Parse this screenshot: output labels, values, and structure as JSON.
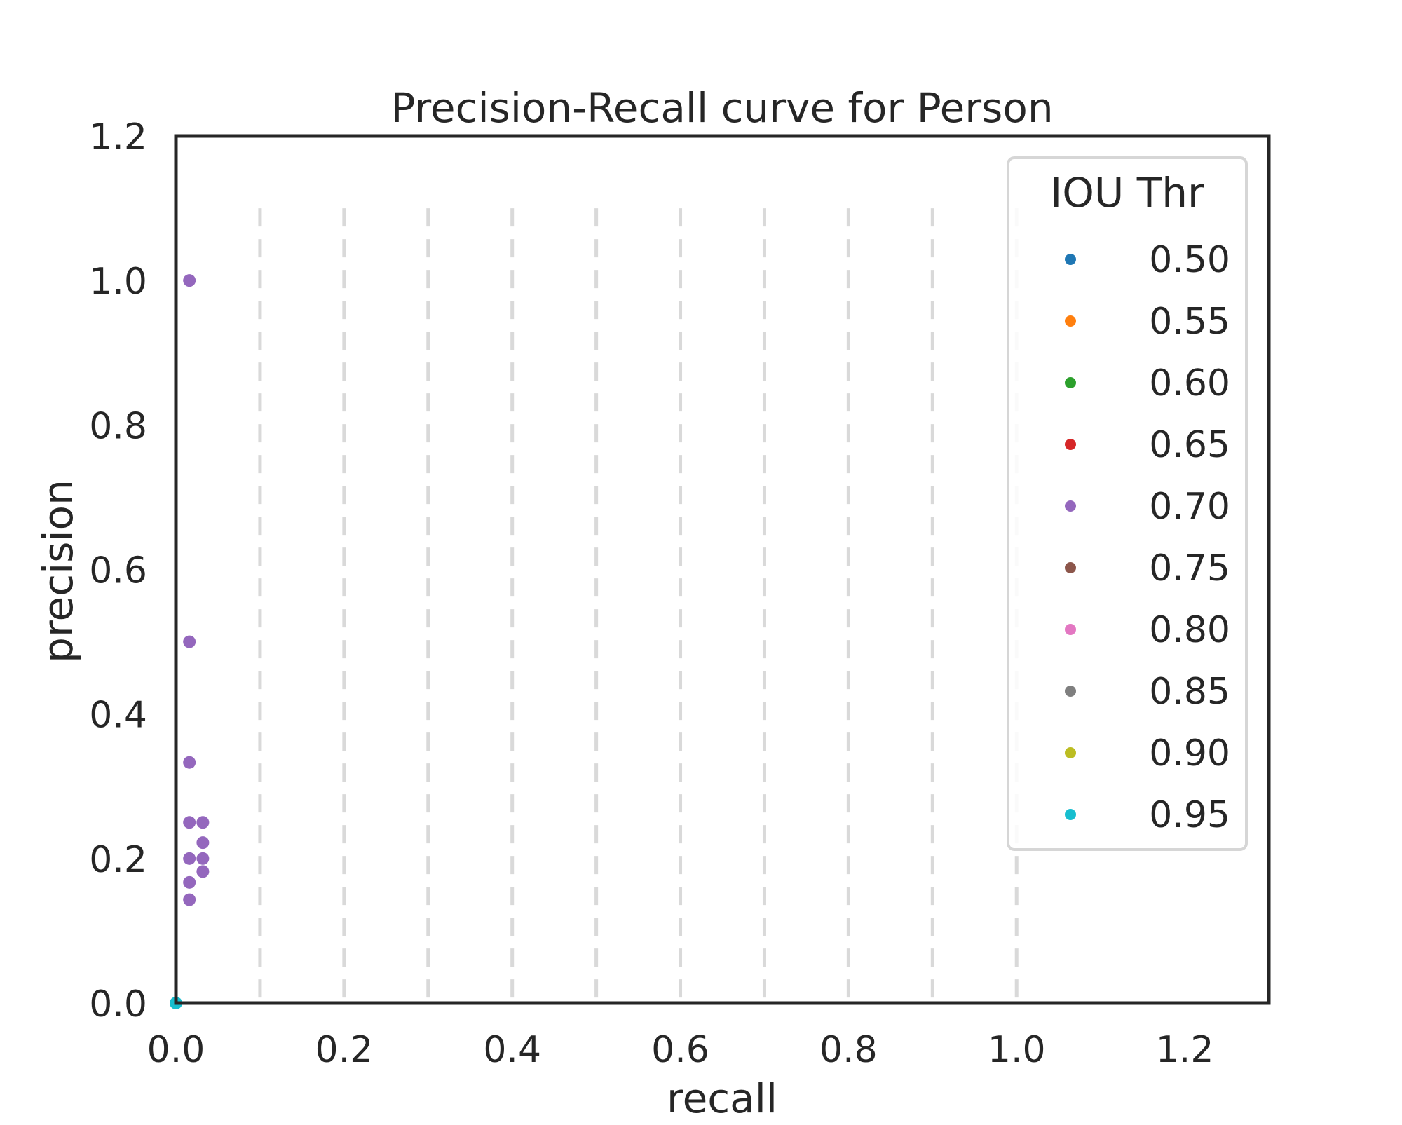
{
  "chart_data": {
    "type": "scatter",
    "title": "Precision-Recall curve for Person",
    "xlabel": "recall",
    "ylabel": "precision",
    "xlim": [
      0.0,
      1.3
    ],
    "ylim": [
      0.0,
      1.2
    ],
    "xticks": [
      "0.0",
      "0.2",
      "0.4",
      "0.6",
      "0.8",
      "1.0",
      "1.2"
    ],
    "yticks": [
      "0.0",
      "0.2",
      "0.4",
      "0.6",
      "0.8",
      "1.0",
      "1.2"
    ],
    "vlines": [
      0.1,
      0.2,
      0.3,
      0.4,
      0.5,
      0.6,
      0.7,
      0.8,
      0.9,
      1.0
    ],
    "vline_range": [
      0.0,
      1.1
    ],
    "vline_color": "#d9d9d9",
    "grid": false,
    "legend": {
      "title": "IOU Thr",
      "placement": "top-right"
    },
    "series": [
      {
        "name": "0.50",
        "color": "#1f77b4",
        "points": []
      },
      {
        "name": "0.55",
        "color": "#ff7f0e",
        "points": []
      },
      {
        "name": "0.60",
        "color": "#2ca02c",
        "points": []
      },
      {
        "name": "0.65",
        "color": "#d62728",
        "points": []
      },
      {
        "name": "0.70",
        "color": "#9467bd",
        "points": [
          [
            0.016,
            1.0
          ],
          [
            0.016,
            0.5
          ],
          [
            0.016,
            0.333
          ],
          [
            0.016,
            0.25
          ],
          [
            0.032,
            0.25
          ],
          [
            0.032,
            0.222
          ],
          [
            0.016,
            0.2
          ],
          [
            0.032,
            0.2
          ],
          [
            0.032,
            0.182
          ],
          [
            0.016,
            0.167
          ],
          [
            0.016,
            0.143
          ]
        ]
      },
      {
        "name": "0.75",
        "color": "#8c564b",
        "points": []
      },
      {
        "name": "0.80",
        "color": "#e377c2",
        "points": []
      },
      {
        "name": "0.85",
        "color": "#7f7f7f",
        "points": []
      },
      {
        "name": "0.90",
        "color": "#bcbd22",
        "points": []
      },
      {
        "name": "0.95",
        "color": "#17becf",
        "points": [
          [
            0.0,
            0.0
          ]
        ]
      }
    ]
  }
}
